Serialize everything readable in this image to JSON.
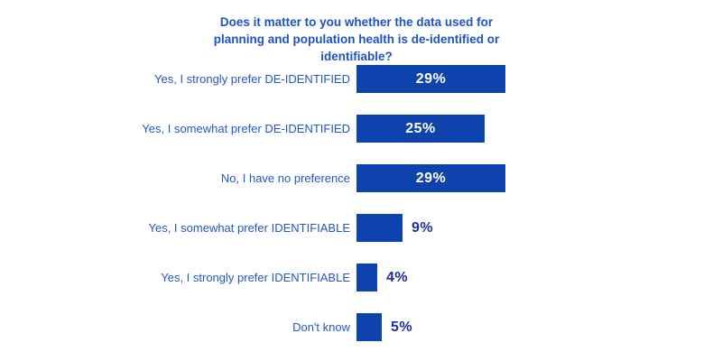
{
  "chart_data": {
    "type": "bar",
    "orientation": "horizontal",
    "title": "Does it matter to you whether the data used for planning and population health is de-identified or identifiable?",
    "title_lines": [
      "Does it matter to you whether the data used for",
      "planning and population health is de-identified or",
      "identifiable?"
    ],
    "categories": [
      "Yes, I strongly prefer DE-IDENTIFIED",
      "Yes, I somewhat prefer DE-IDENTIFIED",
      "No, I have no preference",
      "Yes, I somewhat prefer IDENTIFIABLE",
      "Yes, I strongly prefer IDENTIFIABLE",
      "Don't know"
    ],
    "values": [
      29,
      25,
      29,
      9,
      4,
      5
    ],
    "value_labels": [
      "29%",
      "25%",
      "29%",
      "9%",
      "4%",
      "5%"
    ],
    "value_label_position": [
      "inside",
      "inside",
      "inside",
      "outside",
      "outside",
      "outside"
    ],
    "xlim": [
      0,
      29
    ],
    "xlabel": "",
    "ylabel": "",
    "grid": false,
    "legend": "none",
    "axes_visible": false,
    "colors": {
      "bar_fill": "#0E42AC",
      "title_text": "#1D53C4",
      "category_text": "#2456C6",
      "value_inside_text": "#FFFFFF",
      "value_outside_text": "#1F2F9E",
      "background": "#FFFFFF"
    }
  }
}
